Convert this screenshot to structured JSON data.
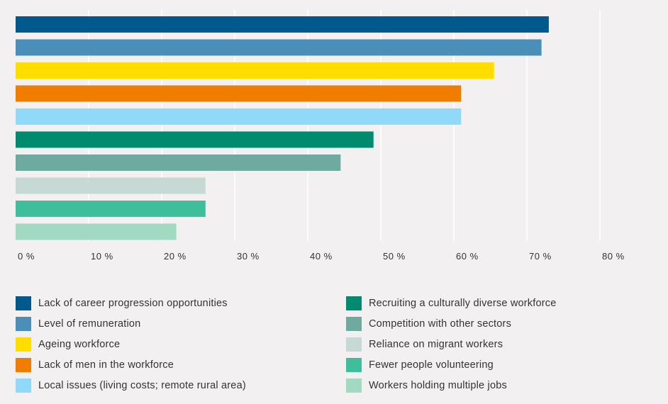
{
  "chart_data": {
    "type": "bar",
    "orientation": "horizontal",
    "categories": [
      "Lack of career progression opportunities",
      "Level of remuneration",
      "Ageing workforce",
      "Lack of men in the workforce",
      "Local issues (living costs; remote rural area)",
      "Recruiting a culturally diverse workforce",
      "Competition with other sectors",
      "Reliance on migrant workers",
      "Fewer people volunteering",
      "Workers holding multiple jobs"
    ],
    "values": [
      73,
      72,
      65.5,
      61,
      61,
      49,
      44.5,
      26,
      26,
      22
    ],
    "colors": [
      "#00598c",
      "#4a8eba",
      "#ffdd00",
      "#f07d00",
      "#91d9f8",
      "#008a6e",
      "#6eaaa0",
      "#c6d9d5",
      "#3fbe9b",
      "#a2d9c2"
    ],
    "xlim": [
      0,
      80
    ],
    "xticks": [
      0,
      10,
      20,
      30,
      40,
      50,
      60,
      70,
      80
    ],
    "xtick_labels": [
      "0 %",
      "10 %",
      "20 %",
      "30 %",
      "40 %",
      "50 %",
      "60 %",
      "70 %",
      "80 %"
    ],
    "grid": true,
    "legend_position": "bottom",
    "title": "",
    "xlabel": "",
    "ylabel": ""
  }
}
